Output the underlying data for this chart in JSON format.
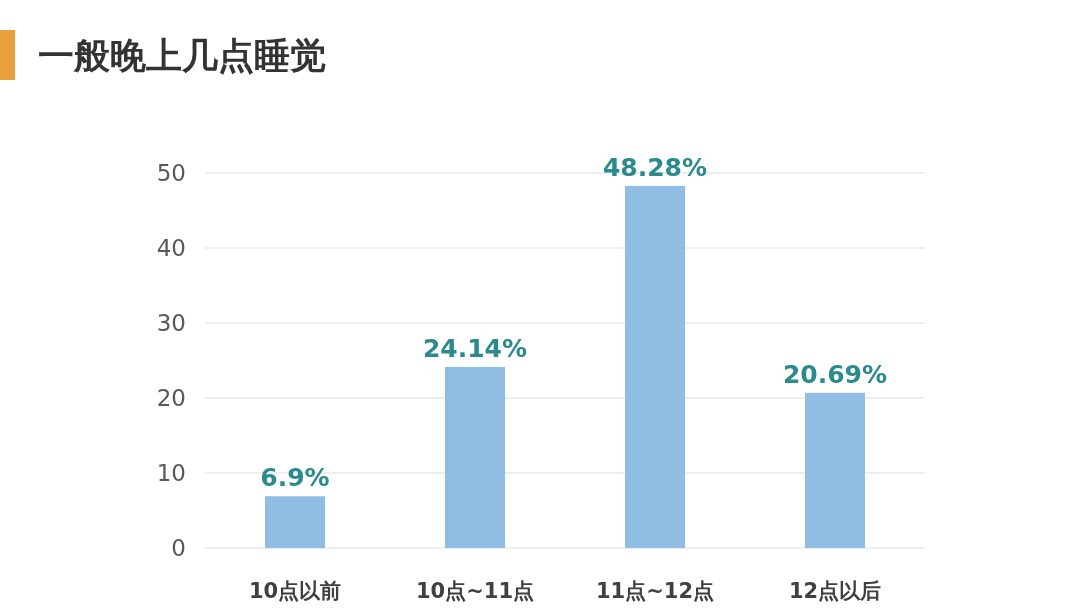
{
  "chart_data": {
    "type": "bar",
    "title": "一般晚上几点睡觉",
    "categories": [
      "10点以前",
      "10点~11点",
      "11点~12点",
      "12点以后"
    ],
    "values": [
      6.9,
      24.14,
      48.28,
      20.69
    ],
    "value_labels": [
      "6.9%",
      "24.14%",
      "48.28%",
      "20.69%"
    ],
    "color": "#8fbde3",
    "ylim": [
      0,
      50
    ],
    "yticks": [
      0,
      10,
      20,
      30,
      40,
      50
    ],
    "grid": "y"
  }
}
